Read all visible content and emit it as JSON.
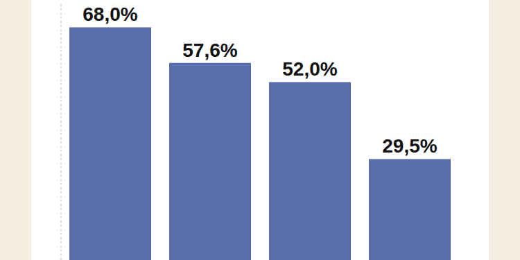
{
  "chart_data": {
    "type": "bar",
    "categories": [
      null,
      null,
      null,
      null
    ],
    "values": [
      68.0,
      57.6,
      52.0,
      29.5
    ],
    "value_labels": [
      "68,0%",
      "57,6%",
      "52,0%",
      "29,5%"
    ],
    "color": "#5a6dab",
    "ylim": [
      0,
      75
    ],
    "grid": false,
    "data_labels": true,
    "tick_labels": false
  }
}
